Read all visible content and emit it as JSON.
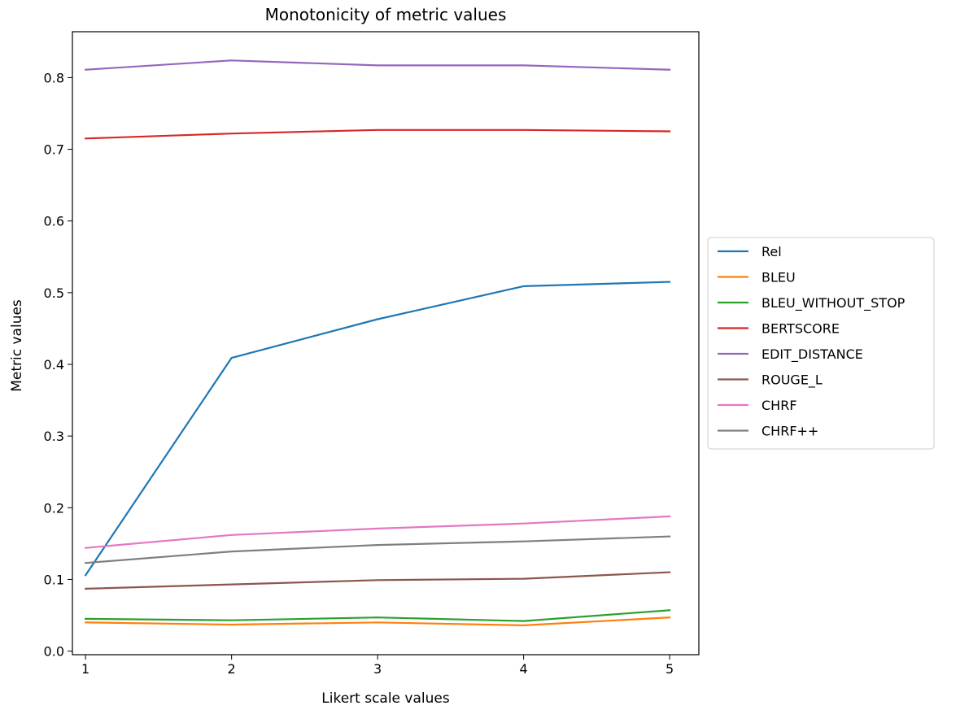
{
  "chart_data": {
    "type": "line",
    "title": "Monotonicity of metric values",
    "xlabel": "Likert scale values",
    "ylabel": "Metric values",
    "x": [
      1,
      2,
      3,
      4,
      5
    ],
    "xticks": [
      "1",
      "2",
      "3",
      "4",
      "5"
    ],
    "yticks": [
      "0.0",
      "0.1",
      "0.2",
      "0.3",
      "0.4",
      "0.5",
      "0.6",
      "0.7",
      "0.8"
    ],
    "xlim": [
      0.91,
      5.2
    ],
    "ylim": [
      -0.005,
      0.864
    ],
    "grid": false,
    "legend_position": "center-right-outside",
    "series": [
      {
        "name": "Rel",
        "color": "#1f77b4",
        "values": [
          0.106,
          0.409,
          0.463,
          0.509,
          0.515
        ]
      },
      {
        "name": "BLEU",
        "color": "#ff7f0e",
        "values": [
          0.04,
          0.037,
          0.04,
          0.036,
          0.047
        ]
      },
      {
        "name": "BLEU_WITHOUT_STOP",
        "color": "#2ca02c",
        "values": [
          0.045,
          0.043,
          0.047,
          0.042,
          0.057
        ]
      },
      {
        "name": "BERTSCORE",
        "color": "#d62728",
        "values": [
          0.715,
          0.722,
          0.727,
          0.727,
          0.725
        ]
      },
      {
        "name": "EDIT_DISTANCE",
        "color": "#9467bd",
        "values": [
          0.811,
          0.824,
          0.817,
          0.817,
          0.811
        ]
      },
      {
        "name": "ROUGE_L",
        "color": "#8c564b",
        "values": [
          0.087,
          0.093,
          0.099,
          0.101,
          0.11
        ]
      },
      {
        "name": "CHRF",
        "color": "#e377c2",
        "values": [
          0.144,
          0.162,
          0.171,
          0.178,
          0.188
        ]
      },
      {
        "name": "CHRF++",
        "color": "#7f7f7f",
        "values": [
          0.123,
          0.139,
          0.148,
          0.153,
          0.16
        ]
      }
    ]
  }
}
